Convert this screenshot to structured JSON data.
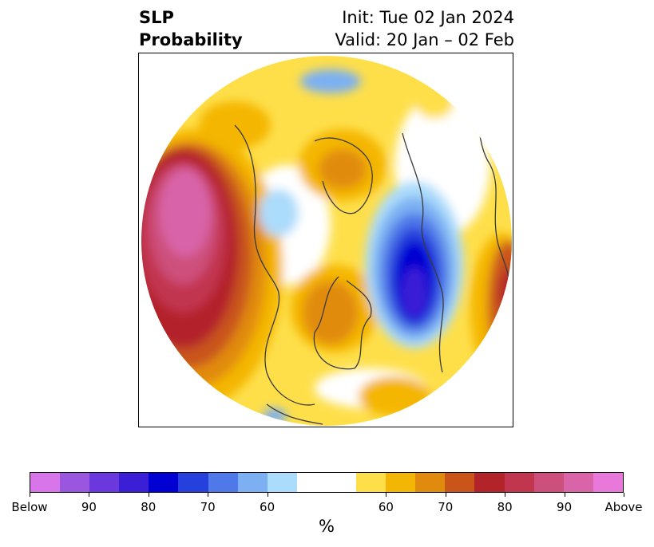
{
  "title": {
    "left_line1": "SLP",
    "left_line2": "Probability",
    "right_line1": "Init: Tue 02 Jan 2024",
    "right_line2": "Valid: 20 Jan – 02 Feb"
  },
  "colorbar": {
    "unit": "%",
    "colors": [
      "#d875e8",
      "#9b56e0",
      "#6a38dc",
      "#3a1fd6",
      "#0000d2",
      "#2540dc",
      "#4f78e8",
      "#7cb0f2",
      "#acdcfb",
      "#ffffff",
      "#ffffff",
      "#fedf4a",
      "#f4b604",
      "#e18b0e",
      "#c9551b",
      "#b3242a",
      "#c2354f",
      "#cd4f7c",
      "#d964a8",
      "#e879da"
    ],
    "ticks": [
      {
        "label": "Below",
        "index": 0
      },
      {
        "label": "90",
        "index": 2
      },
      {
        "label": "80",
        "index": 4
      },
      {
        "label": "70",
        "index": 6
      },
      {
        "label": "60",
        "index": 8
      },
      {
        "label": "60",
        "index": 12
      },
      {
        "label": "70",
        "index": 14
      },
      {
        "label": "80",
        "index": 16
      },
      {
        "label": "90",
        "index": 18
      },
      {
        "label": "Above",
        "index": 20
      }
    ]
  }
}
